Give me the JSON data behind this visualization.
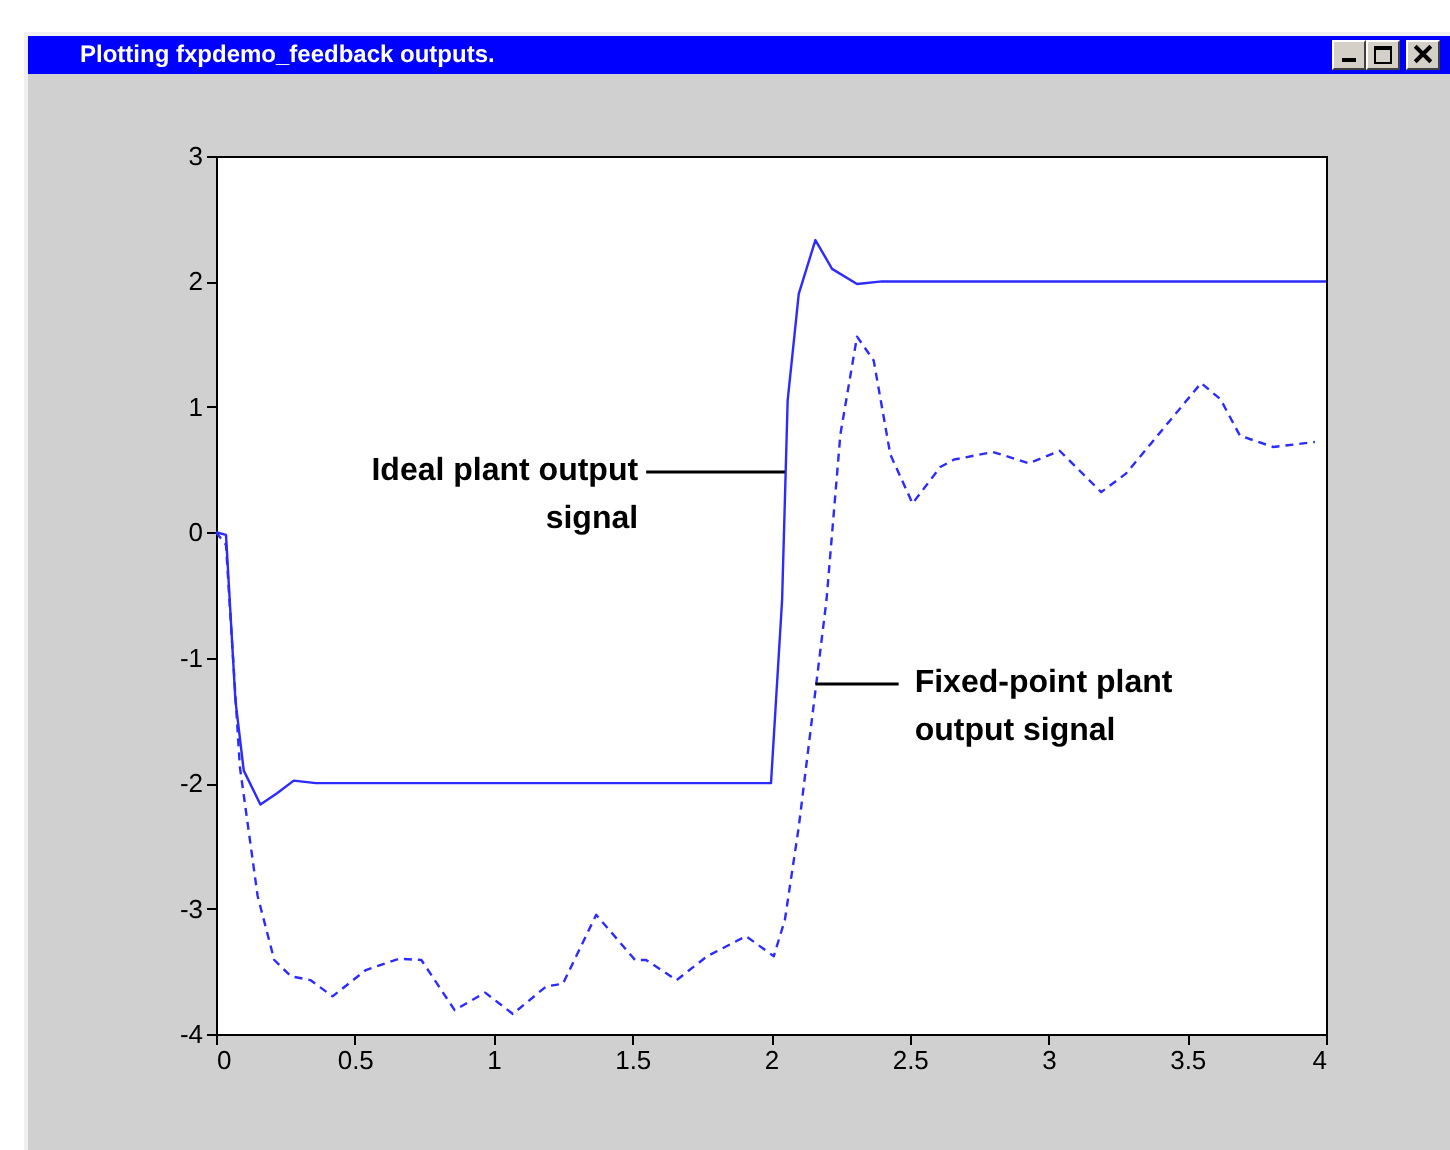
{
  "chart_data": {
    "type": "line",
    "title": "Plotting fxpdemo_feedback outputs.",
    "series": [
      {
        "color": "#2b2bff",
        "line_style": "solid",
        "x": [
          0,
          0.036,
          0.07,
          0.1,
          0.16,
          0.22,
          0.28,
          0.36,
          2.0,
          2.04,
          2.06,
          2.1,
          2.16,
          2.22,
          2.31,
          2.4,
          4
        ],
        "values": [
          0,
          -0.02,
          -1.34,
          -1.9,
          -2.17,
          -2.08,
          -1.98,
          -2.0,
          -2.0,
          -0.54,
          1.05,
          1.9,
          2.33,
          2.1,
          1.98,
          2.0,
          2.0
        ]
      },
      {
        "color": "#2b2bff",
        "line_style": "dashed",
        "x": [
          0,
          0.036,
          0.086,
          0.15,
          0.21,
          0.27,
          0.34,
          0.42,
          0.54,
          0.66,
          0.74,
          0.86,
          0.97,
          1.07,
          1.19,
          1.25,
          1.37,
          1.51,
          1.55,
          1.66,
          1.77,
          1.91,
          2.01,
          2.05,
          2.1,
          2.2,
          2.25,
          2.31,
          2.37,
          2.43,
          2.51,
          2.61,
          2.66,
          2.8,
          2.93,
          3.04,
          3.19,
          3.28,
          3.4,
          3.55,
          3.62,
          3.69,
          3.81,
          3.96
        ],
        "values": [
          0,
          -0.1,
          -1.87,
          -2.9,
          -3.41,
          -3.54,
          -3.57,
          -3.7,
          -3.49,
          -3.4,
          -3.41,
          -3.81,
          -3.67,
          -3.84,
          -3.62,
          -3.6,
          -3.05,
          -3.41,
          -3.41,
          -3.57,
          -3.38,
          -3.22,
          -3.38,
          -3.09,
          -2.35,
          -0.54,
          0.78,
          1.56,
          1.37,
          0.62,
          0.23,
          0.52,
          0.58,
          0.64,
          0.55,
          0.65,
          0.32,
          0.47,
          0.79,
          1.19,
          1.06,
          0.77,
          0.68,
          0.72
        ]
      }
    ],
    "annotations": [
      {
        "text": "Ideal plant output\nsignal",
        "x": 2.05,
        "y": 0.48
      },
      {
        "text": "Fixed-point plant\noutput signal",
        "x": 2.16,
        "y": -1.21
      }
    ],
    "xlim": [
      0,
      4
    ],
    "xticks": [
      0,
      0.5,
      1,
      1.5,
      2,
      2.5,
      3,
      3.5,
      4
    ],
    "ylim": [
      -4,
      3
    ],
    "yticks": [
      -4,
      -3,
      -2,
      -1,
      0,
      1,
      2,
      3
    ],
    "grid": false
  }
}
